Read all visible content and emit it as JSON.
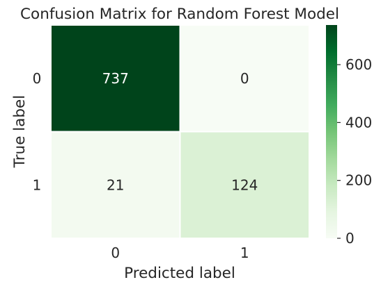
{
  "chart_data": {
    "type": "heatmap",
    "title": "Confusion Matrix for Random Forest Model",
    "xlabel": "Predicted label",
    "ylabel": "True label",
    "x_categories": [
      "0",
      "1"
    ],
    "y_categories": [
      "0",
      "1"
    ],
    "values": [
      [
        737,
        0
      ],
      [
        21,
        124
      ]
    ],
    "cell_labels": [
      [
        "737",
        "0"
      ],
      [
        "21",
        "124"
      ]
    ],
    "colorbar": {
      "min": 0,
      "max": 737,
      "ticks": [
        0,
        200,
        400,
        600
      ],
      "tick_labels": [
        "0",
        "200",
        "400",
        "600"
      ]
    },
    "colormap": "Greens",
    "colors": {
      "low": "#f7fcf5",
      "high": "#00441b",
      "cell_border": "#ffffff",
      "text_on_light": "#262626",
      "text_on_dark": "#ffffff"
    },
    "grid": false,
    "legend": "colorbar-right"
  }
}
